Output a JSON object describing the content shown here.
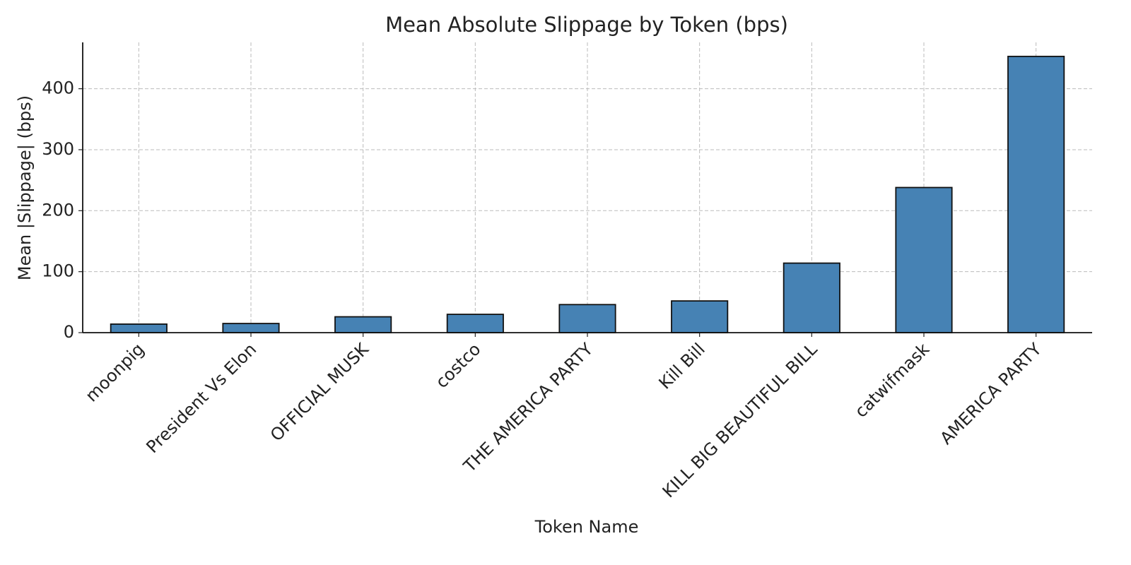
{
  "chart_data": {
    "type": "bar",
    "title": "Mean Absolute Slippage by Token (bps)",
    "xlabel": "Token Name",
    "ylabel": "Mean |Slippage| (bps)",
    "categories": [
      "moonpig",
      "President Vs Elon",
      "OFFICIAL MUSK",
      "costco",
      "THE AMERICA PARTY",
      "Kill Bill",
      "KILL BIG BEAUTIFUL BILL",
      "catwifmask",
      "AMERICA PARTY"
    ],
    "values": [
      14,
      15,
      26,
      30,
      46,
      52,
      114,
      238,
      453
    ],
    "color": "#4682b4",
    "ylim": [
      0,
      476
    ],
    "yticks": [
      0,
      100,
      200,
      300,
      400
    ],
    "grid": true
  }
}
